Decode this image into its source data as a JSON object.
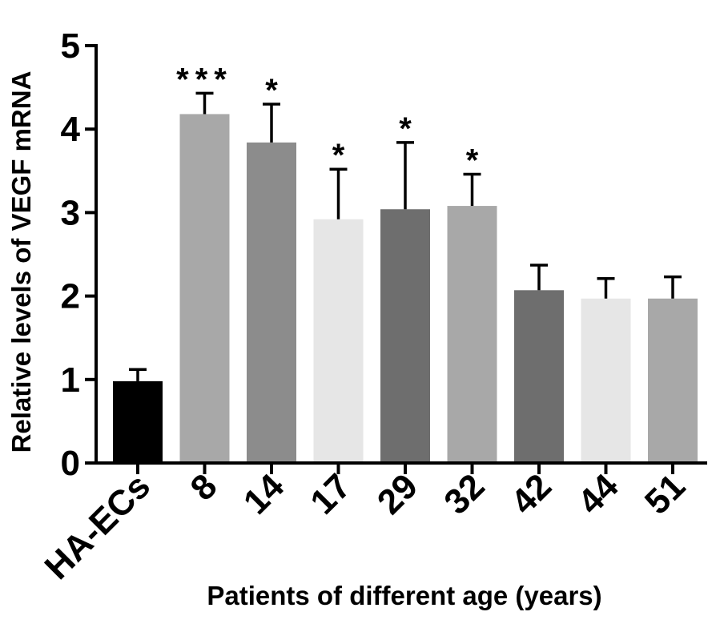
{
  "chart_data": {
    "type": "bar",
    "title": "",
    "xlabel": "Patients of different age (years)",
    "ylabel": "Relative levels of VEGF mRNA",
    "ylim": [
      0,
      5
    ],
    "yticks": [
      "0",
      "1",
      "2",
      "3",
      "4",
      "5"
    ],
    "categories": [
      "HA-ECs",
      "8",
      "14",
      "17",
      "29",
      "32",
      "42",
      "44",
      "51"
    ],
    "values": [
      0.98,
      4.18,
      3.84,
      2.92,
      3.04,
      3.08,
      2.07,
      1.97,
      1.97
    ],
    "error_upper": [
      0.14,
      0.25,
      0.46,
      0.6,
      0.8,
      0.38,
      0.3,
      0.24,
      0.26
    ],
    "significance": [
      "",
      "***",
      "*",
      "*",
      "*",
      "*",
      "",
      "",
      ""
    ],
    "bar_colors": [
      "#000000",
      "#a8a8a8",
      "#8c8c8c",
      "#e6e6e6",
      "#6e6e6e",
      "#a8a8a8",
      "#6e6e6e",
      "#e6e6e6",
      "#a8a8a8"
    ],
    "grid": false
  }
}
